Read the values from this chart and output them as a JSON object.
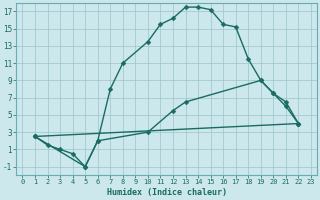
{
  "xlabel": "Humidex (Indice chaleur)",
  "bg_color": "#cce8ec",
  "line_color": "#1a6b63",
  "grid_color": "#9ac4ca",
  "spine_color": "#6aacb4",
  "xlim": [
    -0.5,
    23.5
  ],
  "ylim": [
    -2,
    18
  ],
  "xticks": [
    0,
    1,
    2,
    3,
    4,
    5,
    6,
    7,
    8,
    9,
    10,
    11,
    12,
    13,
    14,
    15,
    16,
    17,
    18,
    19,
    20,
    21,
    22,
    23
  ],
  "yticks": [
    -1,
    1,
    3,
    5,
    7,
    9,
    11,
    13,
    15,
    17
  ],
  "line1_x": [
    1,
    2,
    3,
    4,
    5,
    6,
    7,
    8,
    10,
    11,
    12,
    13,
    14,
    15,
    16,
    17,
    18,
    19,
    20,
    21,
    22
  ],
  "line1_y": [
    2.5,
    1.5,
    1,
    0.5,
    -1,
    2,
    8,
    11,
    13.5,
    15.5,
    16.2,
    17.5,
    17.5,
    17.2,
    15.5,
    15.2,
    11.5,
    9,
    7.5,
    6,
    4
  ],
  "line2_x": [
    1,
    5,
    6,
    10,
    12,
    13,
    19,
    20,
    21,
    22
  ],
  "line2_y": [
    2.5,
    -1,
    2,
    3,
    5.5,
    6.5,
    9,
    7.5,
    6.5,
    4
  ],
  "line3_x": [
    1,
    22
  ],
  "line3_y": [
    2.5,
    4
  ],
  "markersize": 2.5,
  "linewidth": 1.0,
  "tick_fontsize_x": 5.0,
  "tick_fontsize_y": 5.5,
  "xlabel_fontsize": 6.0
}
